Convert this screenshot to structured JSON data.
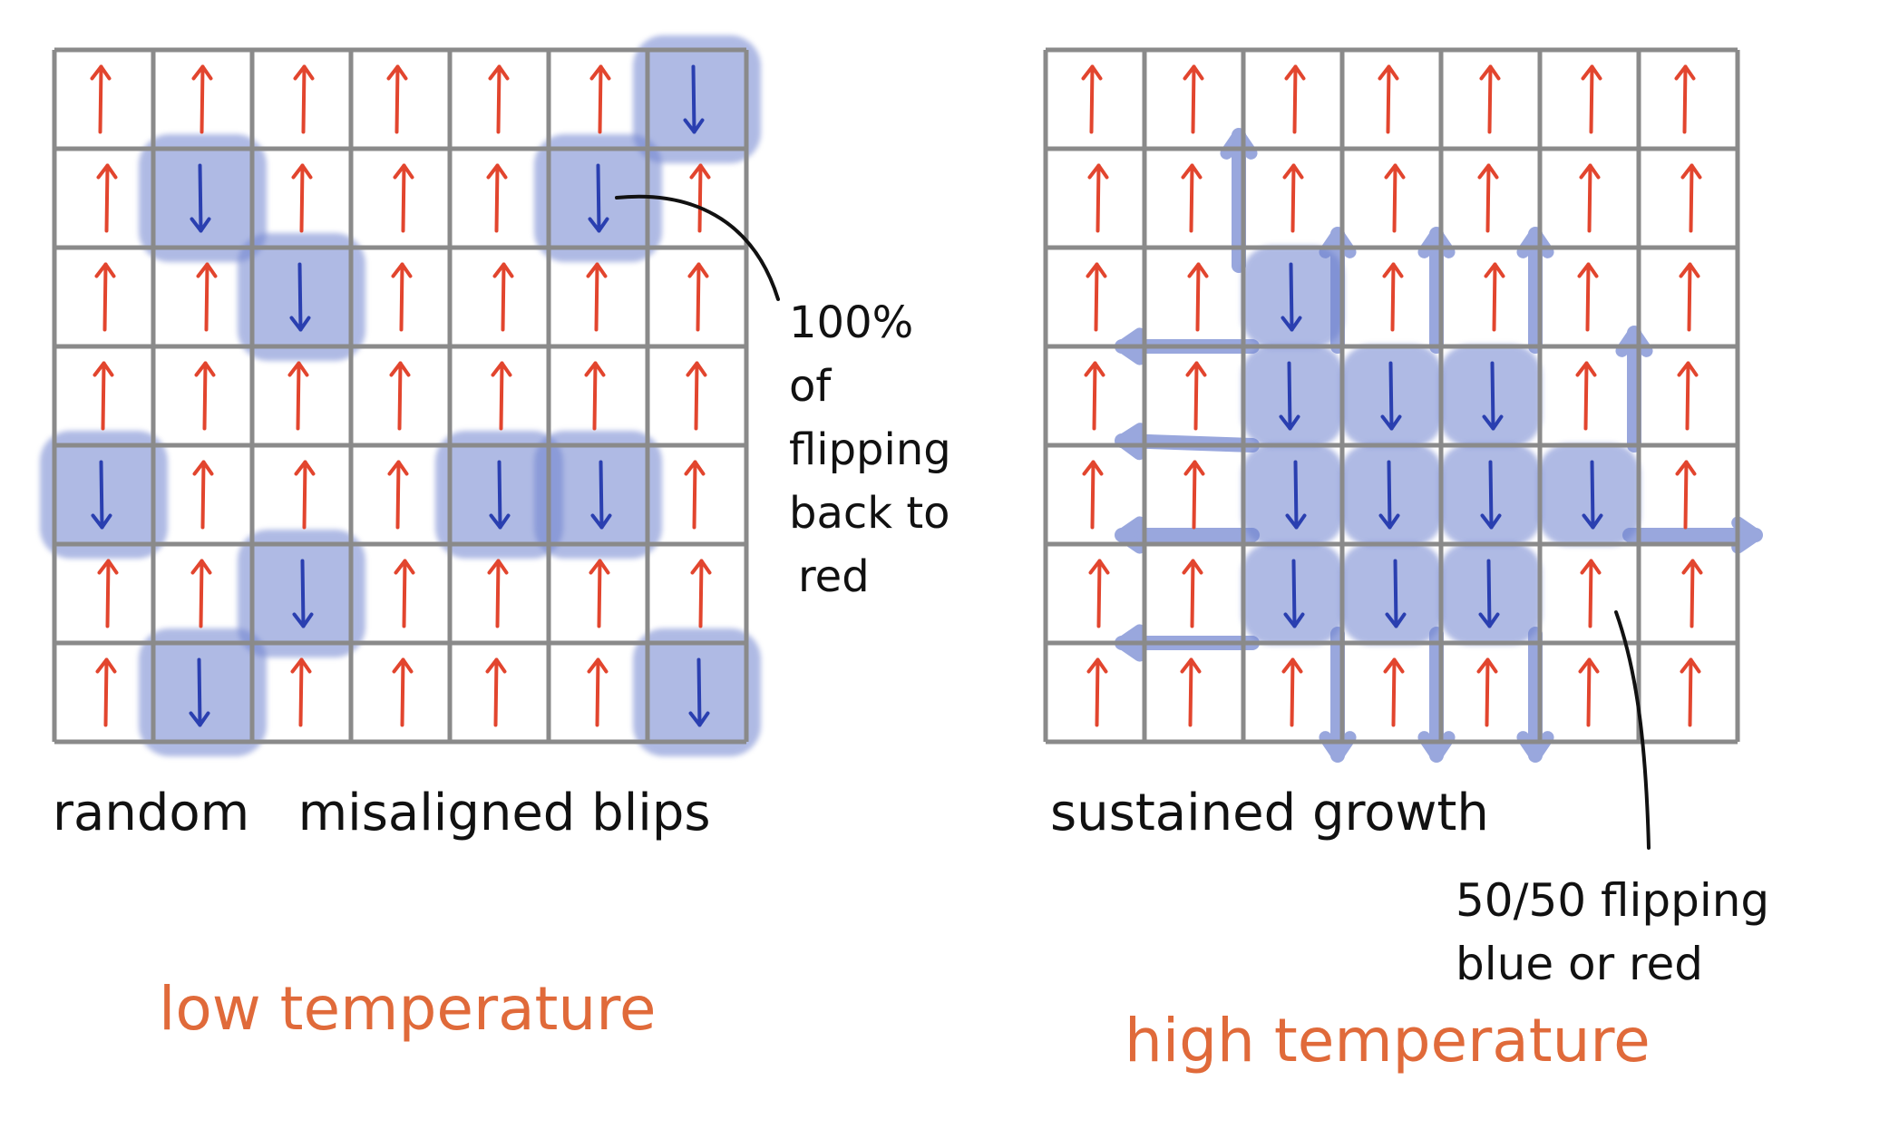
{
  "colors": {
    "spin_up": "#e2452e",
    "spin_down": "#2a3fb0",
    "flipped_highlight": "#6e82cf",
    "grid": "#8a8a8a",
    "temperature_label": "#e06a3a",
    "ink": "#111111"
  },
  "panels": [
    {
      "id": "low",
      "caption": "random   misaligned blips",
      "temperature_label": "low temperature",
      "annotation": [
        "100%",
        "of",
        "flipping",
        "back to",
        "red"
      ],
      "rows": 7,
      "cols": 7,
      "flipped_cells": [
        [
          0,
          6
        ],
        [
          1,
          1
        ],
        [
          1,
          5
        ],
        [
          2,
          2
        ],
        [
          4,
          0
        ],
        [
          4,
          4
        ],
        [
          4,
          5
        ],
        [
          5,
          2
        ],
        [
          6,
          1
        ],
        [
          6,
          6
        ]
      ],
      "annotated_cell": [
        1,
        5
      ]
    },
    {
      "id": "high",
      "caption": "sustained growth",
      "temperature_label": "high temperature",
      "annotation": [
        "50/50 flipping",
        "blue or red"
      ],
      "rows": 7,
      "cols": 7,
      "flipped_cells": [
        [
          2,
          2
        ],
        [
          3,
          2
        ],
        [
          3,
          3
        ],
        [
          3,
          4
        ],
        [
          4,
          2
        ],
        [
          4,
          3
        ],
        [
          4,
          4
        ],
        [
          4,
          5
        ],
        [
          5,
          2
        ],
        [
          5,
          3
        ],
        [
          5,
          4
        ]
      ],
      "annotated_cell": [
        5,
        5
      ]
    }
  ]
}
